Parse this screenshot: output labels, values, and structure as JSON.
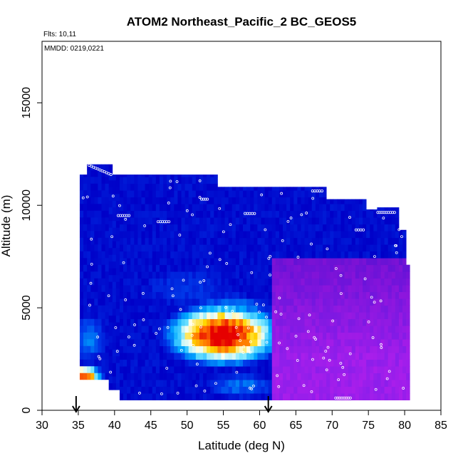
{
  "chart_data": {
    "type": "heatmap",
    "title": "ATOM2 Northeast_Pacific_2 BC_GEOS5",
    "subtitle_flights": "Flts: 10,11",
    "subtitle_dates": "MMDD: 0219,0221",
    "xlabel": "Latitude (deg N)",
    "ylabel": "Altitude (m)",
    "xlim": [
      30,
      85
    ],
    "ylim": [
      0,
      18000
    ],
    "xticks": [
      30,
      35,
      40,
      45,
      50,
      55,
      60,
      65,
      70,
      75,
      80,
      85
    ],
    "yticks": [
      0,
      5000,
      10000,
      15000
    ],
    "arrows_at_latitude": [
      34.7,
      61.2
    ],
    "grid": false,
    "legend": "none",
    "colors": {
      "low": "#0000cc",
      "mid_cyan": "#33ccff",
      "high": "#ff2200",
      "purple": "#8822ee",
      "track": "#ffffff"
    },
    "column_tops": [
      {
        "lat_from": 35.0,
        "lat_to": 36.3,
        "top_alt": 11500
      },
      {
        "lat_from": 36.3,
        "lat_to": 39.7,
        "top_alt": 12000
      },
      {
        "lat_from": 39.7,
        "lat_to": 54.0,
        "top_alt": 11500
      },
      {
        "lat_from": 54.0,
        "lat_to": 69.0,
        "top_alt": 10900
      },
      {
        "lat_from": 69.0,
        "lat_to": 74.8,
        "top_alt": 10300
      },
      {
        "lat_from": 74.8,
        "lat_to": 76.0,
        "top_alt": 9800
      },
      {
        "lat_from": 76.0,
        "lat_to": 79.4,
        "top_alt": 9900
      },
      {
        "lat_from": 79.4,
        "lat_to": 80.0,
        "top_alt": 8800
      },
      {
        "lat_from": 80.0,
        "lat_to": 80.5,
        "top_alt": 7100
      }
    ],
    "column_bottoms": [
      {
        "lat_from": 34.7,
        "lat_to": 39.3,
        "bottom_alt": 1500
      },
      {
        "lat_from": 39.3,
        "lat_to": 40.6,
        "bottom_alt": 1000
      },
      {
        "lat_from": 40.6,
        "lat_to": 80.5,
        "bottom_alt": 500
      }
    ],
    "hotspots": [
      {
        "lat": 55.0,
        "alt": 3700,
        "lat_radius": 9,
        "alt_radius": 1700,
        "value": 1.0
      },
      {
        "lat": 56.0,
        "alt": 4800,
        "lat_radius": 6,
        "alt_radius": 900,
        "value": 0.4
      },
      {
        "lat": 35.5,
        "alt": 1700,
        "lat_radius": 3.2,
        "alt_radius": 600,
        "value": 0.95
      },
      {
        "lat": 36.5,
        "alt": 3500,
        "lat_radius": 2.5,
        "alt_radius": 1200,
        "value": 0.3
      },
      {
        "lat": 57.5,
        "alt": 1200,
        "lat_radius": 5,
        "alt_radius": 600,
        "value": 0.3
      },
      {
        "lat": 50.0,
        "alt": 6000,
        "lat_radius": 6,
        "alt_radius": 900,
        "value": 0.15
      }
    ],
    "purple_region": {
      "lat_from": 61.5,
      "alt_max": 7500
    },
    "flight_track_segments": [
      {
        "lat_from": 36.5,
        "alt_from": 11950,
        "lat_to": 39.5,
        "alt_to": 11500
      },
      {
        "lat_from": 40.5,
        "alt_from": 9500,
        "lat_to": 42.0,
        "alt_to": 9500
      },
      {
        "lat_from": 46.0,
        "alt_from": 9200,
        "lat_to": 47.5,
        "alt_to": 9200
      },
      {
        "lat_from": 52.0,
        "alt_from": 10300,
        "lat_to": 52.8,
        "alt_to": 10300
      },
      {
        "lat_from": 58.0,
        "alt_from": 9600,
        "lat_to": 59.3,
        "alt_to": 9600
      },
      {
        "lat_from": 67.3,
        "alt_from": 10700,
        "lat_to": 68.6,
        "alt_to": 10700
      },
      {
        "lat_from": 73.3,
        "alt_from": 8800,
        "lat_to": 74.3,
        "alt_to": 8800
      },
      {
        "lat_from": 76.3,
        "alt_from": 9650,
        "lat_to": 78.6,
        "alt_to": 9650
      },
      {
        "lat_from": 70.5,
        "alt_from": 600,
        "lat_to": 72.5,
        "alt_to": 600
      }
    ]
  }
}
